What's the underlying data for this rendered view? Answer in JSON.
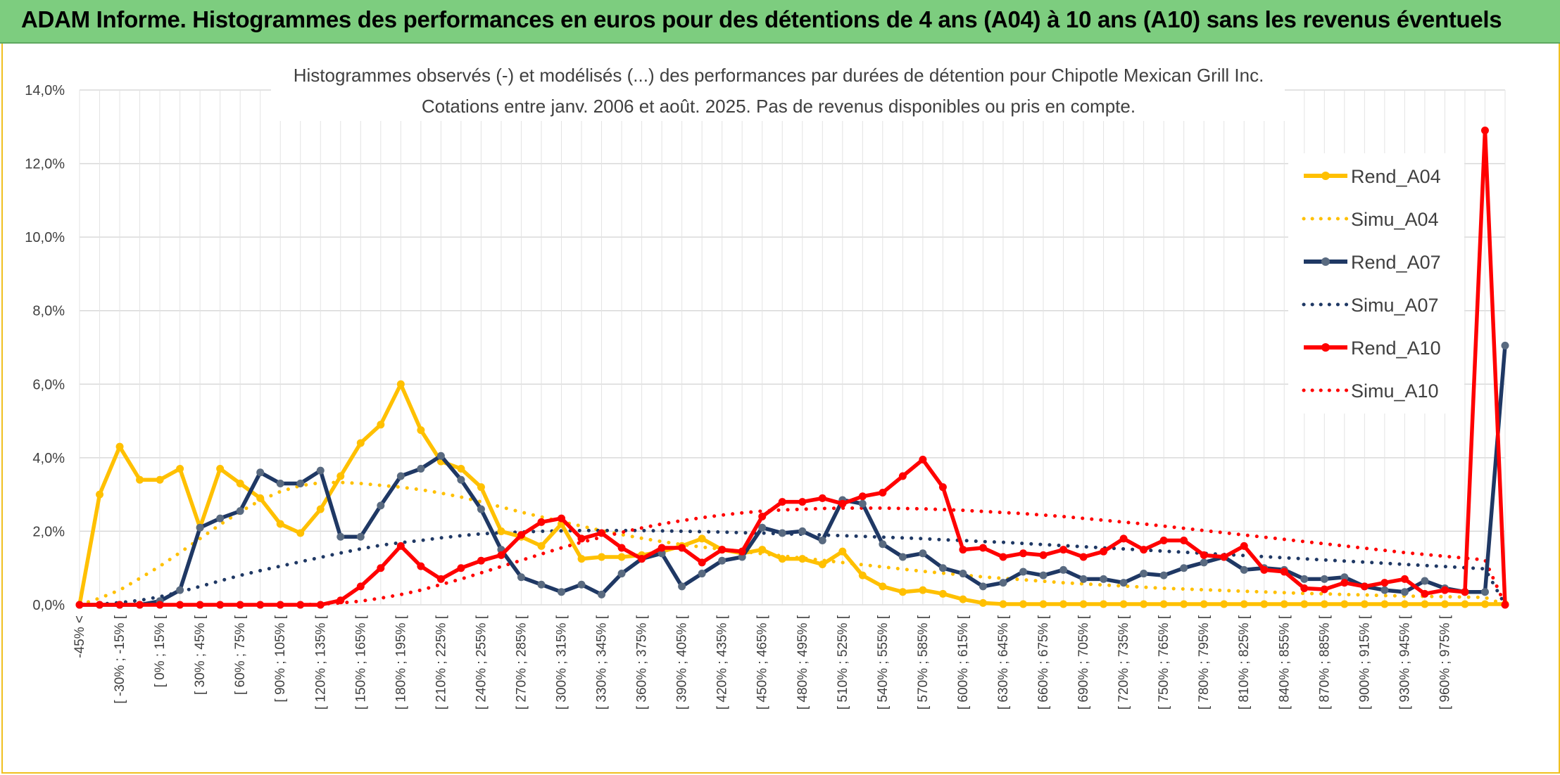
{
  "header": {
    "title": "ADAM Informe. Histogrammes des performances en euros pour des détentions de 4 ans (A04) à 10 ans (A10) sans les revenus éventuels"
  },
  "chart_data": {
    "type": "line",
    "title": "Histogrammes observés (-) et modélisés (...) des performances par durées de détention pour Chipotle Mexican Grill Inc.",
    "subtitle": "Cotations entre janv. 2006 et août. 2025. Pas de revenus disponibles ou pris en compte.",
    "xlabel": "",
    "ylabel": "",
    "ylim": [
      0,
      14
    ],
    "y_ticks": [
      "0,0%",
      "2,0%",
      "4,0%",
      "6,0%",
      "8,0%",
      "10,0%",
      "12,0%",
      "14,0%"
    ],
    "grid": true,
    "legend_position": "right",
    "x_tick_labels": [
      "-45% <",
      "[ -30% ; -15% [",
      "[ 0% ; 15% [",
      "[ 30% ; 45% [",
      "[ 60% ; 75% [",
      "[ 90% ; 105% [",
      "[ 120% ; 135% [",
      "[ 150% ; 165% [",
      "[ 180% ; 195% [",
      "[ 210% ; 225% [",
      "[ 240% ; 255% [",
      "[ 270% ; 285% [",
      "[ 300% ; 315% [",
      "[ 330% ; 345% [",
      "[ 360% ; 375% [",
      "[ 390% ; 405% [",
      "[ 420% ; 435% [",
      "[ 450% ; 465% [",
      "[ 480% ; 495% [",
      "[ 510% ; 525% [",
      "[ 540% ; 555% [",
      "[ 570% ; 585% [",
      "[ 600% ; 615% [",
      "[ 630% ; 645% [",
      "[ 660% ; 675% [",
      "[ 690% ; 705% [",
      "[ 720% ; 735% [",
      "[ 750% ; 765% [",
      "[ 780% ; 795% [",
      "[ 810% ; 825% [",
      "[ 840% ; 855% [",
      "[ 870% ; 885% [",
      "[ 900% ; 915% [",
      "[ 930% ; 945% [",
      "[ 960% ; 975% ["
    ],
    "n_points": 72,
    "series": [
      {
        "name": "Rend_A04",
        "style": "solid",
        "marker": true,
        "color": "#ffc000",
        "values": [
          0,
          3.0,
          4.3,
          3.4,
          3.4,
          3.7,
          2.1,
          3.7,
          3.3,
          2.9,
          2.2,
          1.95,
          2.6,
          3.5,
          4.4,
          4.9,
          6.0,
          4.75,
          3.9,
          3.7,
          3.2,
          2.0,
          1.85,
          1.6,
          2.2,
          1.25,
          1.3,
          1.3,
          1.35,
          1.45,
          1.6,
          1.8,
          1.5,
          1.4,
          1.5,
          1.25,
          1.25,
          1.1,
          1.45,
          0.8,
          0.5,
          0.35,
          0.4,
          0.3,
          0.15,
          0.05,
          0.02,
          0.02,
          0.02,
          0.02,
          0.02,
          0.02,
          0.02,
          0.02,
          0.02,
          0.02,
          0.02,
          0.02,
          0.02,
          0.02,
          0.02,
          0.02,
          0.02,
          0.02,
          0.02,
          0.02,
          0.02,
          0.02,
          0.02,
          0.02,
          0.02,
          0.02
        ]
      },
      {
        "name": "Simu_A04",
        "style": "dotted",
        "marker": false,
        "color": "#ffc000",
        "values": [
          0,
          0.18,
          0.4,
          0.72,
          1.05,
          1.42,
          1.8,
          2.18,
          2.53,
          2.84,
          3.08,
          3.24,
          3.32,
          3.33,
          3.3,
          3.25,
          3.2,
          3.13,
          3.04,
          2.93,
          2.8,
          2.66,
          2.52,
          2.39,
          2.26,
          2.14,
          2.02,
          1.91,
          1.81,
          1.72,
          1.64,
          1.57,
          1.51,
          1.45,
          1.39,
          1.33,
          1.27,
          1.21,
          1.15,
          1.09,
          1.03,
          0.97,
          0.91,
          0.86,
          0.81,
          0.76,
          0.72,
          0.68,
          0.64,
          0.6,
          0.57,
          0.54,
          0.51,
          0.48,
          0.45,
          0.43,
          0.41,
          0.39,
          0.37,
          0.35,
          0.33,
          0.31,
          0.3,
          0.28,
          0.27,
          0.25,
          0.24,
          0.23,
          0.22,
          0.21,
          0.2,
          0.0
        ]
      },
      {
        "name": "Rend_A07",
        "style": "solid",
        "marker": true,
        "color": "#1f3864",
        "values": [
          0,
          0,
          0,
          0,
          0.1,
          0.4,
          2.1,
          2.35,
          2.55,
          3.6,
          3.3,
          3.3,
          3.65,
          1.85,
          1.85,
          2.7,
          3.5,
          3.7,
          4.05,
          3.4,
          2.6,
          1.5,
          0.75,
          0.55,
          0.35,
          0.55,
          0.28,
          0.85,
          1.25,
          1.4,
          0.5,
          0.85,
          1.2,
          1.3,
          2.1,
          1.95,
          2.0,
          1.75,
          2.85,
          2.75,
          1.65,
          1.3,
          1.4,
          1.0,
          0.85,
          0.5,
          0.6,
          0.9,
          0.8,
          0.95,
          0.7,
          0.7,
          0.6,
          0.85,
          0.8,
          1.0,
          1.15,
          1.3,
          0.95,
          1.0,
          0.95,
          0.7,
          0.7,
          0.75,
          0.5,
          0.4,
          0.35,
          0.65,
          0.45,
          0.35,
          0.35,
          7.05
        ]
      },
      {
        "name": "Simu_A07",
        "style": "dotted",
        "marker": false,
        "color": "#1f3864",
        "values": [
          0,
          0.02,
          0.06,
          0.12,
          0.22,
          0.35,
          0.5,
          0.65,
          0.8,
          0.93,
          1.05,
          1.17,
          1.29,
          1.41,
          1.52,
          1.62,
          1.69,
          1.75,
          1.82,
          1.88,
          1.93,
          1.96,
          1.98,
          2.0,
          2.01,
          2.02,
          2.02,
          2.02,
          2.02,
          2.01,
          2.0,
          1.99,
          1.98,
          1.96,
          1.95,
          1.93,
          1.92,
          1.9,
          1.88,
          1.86,
          1.84,
          1.82,
          1.8,
          1.77,
          1.75,
          1.72,
          1.7,
          1.67,
          1.64,
          1.61,
          1.58,
          1.55,
          1.52,
          1.49,
          1.46,
          1.43,
          1.4,
          1.37,
          1.34,
          1.31,
          1.28,
          1.25,
          1.22,
          1.19,
          1.16,
          1.13,
          1.1,
          1.07,
          1.04,
          1.01,
          0.98,
          0.0
        ]
      },
      {
        "name": "Rend_A10",
        "style": "solid",
        "marker": true,
        "color": "#ff0000",
        "values": [
          0,
          0,
          0,
          0,
          0,
          0,
          0,
          0,
          0,
          0,
          0,
          0,
          0,
          0.12,
          0.5,
          1.0,
          1.6,
          1.05,
          0.7,
          1.0,
          1.2,
          1.35,
          1.9,
          2.25,
          2.35,
          1.8,
          1.95,
          1.55,
          1.25,
          1.55,
          1.55,
          1.15,
          1.5,
          1.45,
          2.4,
          2.8,
          2.8,
          2.9,
          2.75,
          2.95,
          3.05,
          3.5,
          3.95,
          3.2,
          1.5,
          1.55,
          1.3,
          1.4,
          1.35,
          1.5,
          1.3,
          1.45,
          1.8,
          1.5,
          1.75,
          1.75,
          1.35,
          1.3,
          1.6,
          0.95,
          0.9,
          0.45,
          0.42,
          0.6,
          0.5,
          0.6,
          0.7,
          0.3,
          0.4,
          0.35,
          12.9,
          0.0
        ]
      },
      {
        "name": "Simu_A10",
        "style": "dotted",
        "marker": false,
        "color": "#ff0000",
        "values": [
          0,
          0,
          0,
          0,
          0,
          0,
          0,
          0,
          0,
          0,
          0,
          0,
          0.02,
          0.05,
          0.1,
          0.18,
          0.28,
          0.4,
          0.55,
          0.7,
          0.87,
          1.04,
          1.21,
          1.38,
          1.55,
          1.7,
          1.84,
          1.97,
          2.09,
          2.2,
          2.29,
          2.37,
          2.44,
          2.5,
          2.55,
          2.58,
          2.6,
          2.62,
          2.63,
          2.63,
          2.63,
          2.62,
          2.61,
          2.59,
          2.57,
          2.54,
          2.51,
          2.48,
          2.44,
          2.4,
          2.35,
          2.3,
          2.25,
          2.2,
          2.14,
          2.08,
          2.02,
          1.96,
          1.9,
          1.84,
          1.78,
          1.72,
          1.66,
          1.6,
          1.54,
          1.48,
          1.42,
          1.37,
          1.32,
          1.27,
          1.22,
          0.0
        ]
      }
    ]
  }
}
